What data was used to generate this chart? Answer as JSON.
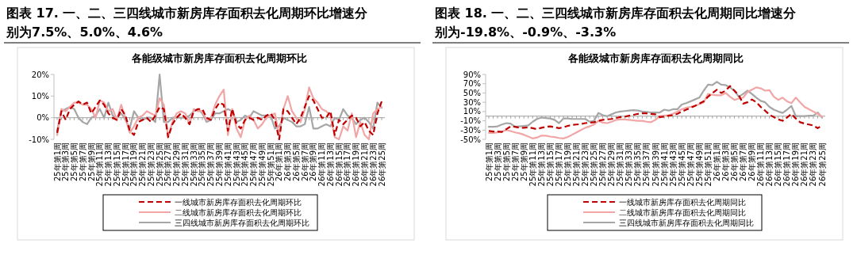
{
  "chart_data": [
    {
      "type": "line",
      "title": "图表 17. 一、二、三四线城市新房库存面积去化周期环比增速分别为7.5%、5.0%、4.6%",
      "subtitle": "各能级城市新房库存面积去化周期环比",
      "categories": [
        "25年第1周",
        null,
        "25年第3周",
        null,
        "25年第5周",
        null,
        "25年第7周",
        null,
        "25年第9周",
        null,
        "25年第11周",
        null,
        "25年第13周",
        null,
        "25年第15周",
        null,
        "25年第17周",
        null,
        "25年第19周",
        null,
        "25年第21周",
        null,
        "25年第23周",
        null,
        "25年第25周",
        null,
        "25年第27周",
        null,
        "25年第29周",
        null,
        "25年第31周",
        null,
        "25年第33周",
        null,
        "25年第35周",
        null,
        "25年第37周",
        null,
        "25年第39周",
        null,
        "25年第41周",
        null,
        "25年第43周",
        null,
        "25年第45周",
        null,
        "25年第47周",
        null,
        "25年第49周",
        null,
        "25年第51周",
        null,
        "26年第1周",
        null,
        "26年第3周",
        null,
        "26年第5周",
        null,
        "26年第7周",
        null,
        "26年第9周",
        null,
        "26年第11周",
        null,
        "26年第13周",
        null,
        "26年第15周",
        null,
        "26年第17周",
        null,
        "26年第19周",
        null,
        "26年第21周",
        null,
        "26年第23周",
        null,
        "26年第25周"
      ],
      "ylim": [
        -10,
        20
      ],
      "yticks": [
        {
          "value": -10,
          "label": "-10%"
        },
        {
          "value": 0,
          "label": "0%"
        },
        {
          "value": 10,
          "label": "10%"
        },
        {
          "value": 20,
          "label": "20%"
        }
      ],
      "legend": "bottom",
      "series": [
        {
          "name": "一线城市新房库存面积去化周期环比",
          "color": "#c00000",
          "line_style": "dashed",
          "values": [
            -7,
            3,
            -1,
            4,
            6,
            7.5,
            6,
            7,
            2,
            5,
            8,
            6,
            2,
            0,
            -1,
            4,
            1,
            -6,
            -8,
            -2,
            -1,
            0,
            -2,
            1,
            5,
            4,
            -9,
            -3,
            0,
            2,
            0,
            -3,
            3,
            4,
            4,
            0,
            -1,
            4,
            7,
            6,
            -6,
            4,
            -3,
            -5,
            -1,
            0,
            -1,
            0,
            -1,
            1,
            2,
            -1,
            -10,
            4,
            3,
            0,
            -3,
            0,
            5,
            10,
            8,
            4,
            0,
            0,
            3,
            -8,
            -1,
            -3,
            -1,
            1,
            0,
            -4,
            -2,
            -6,
            -8,
            2,
            7.5
          ]
        },
        {
          "name": "二线城市新房库存面积去化周期环比",
          "color": "#f2a5a5",
          "line_style": "solid",
          "values": [
            -8,
            4,
            3,
            5,
            7,
            7,
            6,
            6,
            4,
            0,
            8,
            7,
            3,
            4,
            -1,
            6,
            0,
            -7,
            -4,
            0,
            1,
            3,
            2,
            1,
            9,
            6,
            -9,
            -2,
            2,
            3,
            2,
            -3,
            4,
            3,
            3,
            -1,
            0,
            6,
            10,
            13,
            -8,
            4,
            -5,
            -9,
            -1,
            1,
            -1,
            -5,
            -3,
            0,
            1,
            2,
            -8,
            4,
            10,
            3,
            0,
            -2,
            4,
            14,
            9,
            7,
            4,
            3,
            1,
            -9,
            -10,
            -4,
            -6,
            2,
            -9,
            -2,
            -8,
            -10,
            2,
            4,
            5.0
          ]
        },
        {
          "name": "三四线城市新房库存面积去化周期环比",
          "color": "#a6a6a6",
          "line_style": "solid",
          "values": [
            -6,
            3,
            4,
            5,
            4,
            0,
            -2,
            -3,
            0,
            1,
            4,
            0,
            7,
            1,
            0,
            2,
            -1,
            -5,
            3,
            0,
            -1,
            0,
            0,
            -2,
            20,
            -2,
            -2,
            0,
            0,
            0,
            0,
            1,
            3,
            4,
            2,
            -2,
            -1,
            2,
            2,
            3,
            4,
            3,
            -2,
            -1,
            1,
            0,
            3,
            2,
            1,
            1,
            1,
            -5,
            -4,
            0,
            -1,
            -2,
            -4,
            -4,
            -3,
            5,
            -5,
            -5,
            -4,
            -3,
            -4,
            0,
            -1,
            4,
            1,
            0,
            -3,
            -1,
            0,
            -2,
            -5,
            7,
            4.6
          ]
        }
      ]
    },
    {
      "type": "line",
      "title": "图表 18. 一、二、三四线城市新房库存面积去化周期同比增速分别为-19.8%、-0.9%、-3.3%",
      "subtitle": "各能级城市新房库存面积去化周期同比",
      "categories": [
        "25年第1周",
        null,
        "25年第3周",
        null,
        "25年第5周",
        null,
        "25年第7周",
        null,
        "25年第9周",
        null,
        "25年第11周",
        null,
        "25年第13周",
        null,
        "25年第15周",
        null,
        "25年第17周",
        null,
        "25年第19周",
        null,
        "25年第21周",
        null,
        "25年第23周",
        null,
        "25年第25周",
        null,
        "25年第27周",
        null,
        "25年第29周",
        null,
        "25年第31周",
        null,
        "25年第33周",
        null,
        "25年第35周",
        null,
        "25年第37周",
        null,
        "25年第39周",
        null,
        "25年第41周",
        null,
        "25年第43周",
        null,
        "25年第45周",
        null,
        "25年第47周",
        null,
        "25年第49周",
        null,
        "25年第51周",
        null,
        "26年第1周",
        null,
        "26年第3周",
        null,
        "26年第5周",
        null,
        "26年第7周",
        null,
        "26年第9周",
        null,
        "26年第11周",
        null,
        "26年第13周",
        null,
        "26年第15周",
        null,
        "26年第17周",
        null,
        "26年第19周",
        null,
        "26年第21周",
        null,
        "26年第23周",
        null,
        "26年第25周"
      ],
      "ylim": [
        -50,
        90
      ],
      "yticks": [
        {
          "value": -50,
          "label": "-50%"
        },
        {
          "value": -30,
          "label": "-30%"
        },
        {
          "value": -10,
          "label": "-10%"
        },
        {
          "value": 10,
          "label": "10%"
        },
        {
          "value": 30,
          "label": "30%"
        },
        {
          "value": 50,
          "label": "50%"
        },
        {
          "value": 70,
          "label": "70%"
        },
        {
          "value": 90,
          "label": "90%"
        }
      ],
      "legend": "bottom",
      "series": [
        {
          "name": "一线城市新房库存面积去化周期同比",
          "color": "#c00000",
          "line_style": "dashed",
          "values": [
            -32,
            -33,
            -33,
            -34,
            -28,
            -22,
            -23,
            -25,
            -25,
            -24,
            -26,
            -28,
            -25,
            -23,
            -22,
            -24,
            -26,
            -24,
            -21,
            -19,
            -18,
            -17,
            -15,
            -14,
            -13,
            -10,
            -8,
            -7,
            -6,
            -4,
            -2,
            -1,
            1,
            3,
            5,
            6,
            6,
            5,
            4,
            -2,
            -1,
            1,
            2,
            5,
            10,
            14,
            18,
            22,
            27,
            32,
            42,
            50,
            57,
            50,
            55,
            65,
            55,
            45,
            27,
            30,
            36,
            30,
            20,
            12,
            3,
            -2,
            -7,
            -10,
            -3,
            5,
            -5,
            -13,
            -16,
            -18,
            -20,
            -26,
            -20
          ]
        },
        {
          "name": "二线城市新房库存面积去化周期同比",
          "color": "#f2a5a5",
          "line_style": "solid",
          "values": [
            -36,
            -36,
            -35,
            -33,
            -30,
            -32,
            -35,
            -37,
            -40,
            -44,
            -48,
            -46,
            -42,
            -42,
            -44,
            -45,
            -47,
            -48,
            -45,
            -40,
            -35,
            -30,
            -25,
            -22,
            -18,
            -10,
            -14,
            -15,
            -12,
            -8,
            -7,
            -7,
            -8,
            -9,
            -10,
            -10,
            -12,
            -13,
            -8,
            0,
            1,
            2,
            5,
            10,
            15,
            18,
            20,
            22,
            26,
            30,
            48,
            46,
            45,
            45,
            50,
            42,
            35,
            38,
            40,
            52,
            57,
            62,
            60,
            55,
            56,
            42,
            35,
            40,
            32,
            28,
            40,
            30,
            20,
            15,
            10,
            5,
            -1
          ]
        },
        {
          "name": "三四线城市新房库存面积去化周期同比",
          "color": "#a6a6a6",
          "line_style": "solid",
          "values": [
            -23,
            -23,
            -22,
            -18,
            -15,
            -16,
            -23,
            -22,
            -21,
            -20,
            -12,
            -6,
            -3,
            -4,
            -5,
            -8,
            -15,
            -5,
            -5,
            -6,
            -6,
            -6,
            -6,
            -12,
            -10,
            7,
            2,
            0,
            4,
            8,
            10,
            11,
            12,
            13,
            12,
            10,
            9,
            8,
            8,
            8,
            14,
            12,
            15,
            15,
            25,
            28,
            32,
            36,
            40,
            55,
            68,
            67,
            74,
            68,
            67,
            62,
            55,
            42,
            48,
            55,
            48,
            40,
            33,
            30,
            20,
            14,
            10,
            7,
            14,
            22,
            0,
            0,
            0,
            1,
            1,
            8,
            -3
          ]
        }
      ]
    }
  ]
}
